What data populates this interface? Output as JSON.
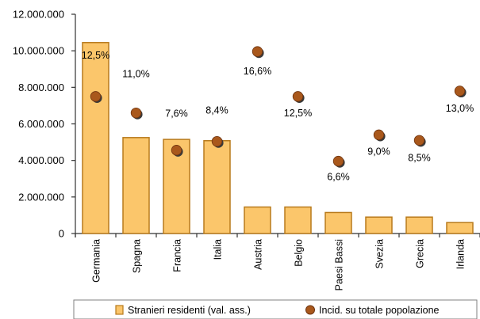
{
  "chart_data": {
    "type": "bar",
    "categories": [
      "Germania",
      "Spagna",
      "Francia",
      "Italia",
      "Austria",
      "Belgio",
      "Paesi Bassi",
      "Svezia",
      "Grecia",
      "Irlanda"
    ],
    "series": [
      {
        "name": "Stranieri residenti (val. ass.)",
        "kind": "bar",
        "axis": "left",
        "values": [
          10450000,
          5250000,
          5150000,
          5080000,
          1450000,
          1450000,
          1150000,
          900000,
          900000,
          600000
        ]
      },
      {
        "name": "Incid. su totale popolazione",
        "kind": "marker",
        "axis": "right",
        "values": [
          12.5,
          11.0,
          7.6,
          8.4,
          16.6,
          12.5,
          6.6,
          9.0,
          8.5,
          13.0
        ],
        "labels": [
          "12,5%",
          "11,0%",
          "7,6%",
          "8,4%",
          "16,6%",
          "12,5%",
          "6,6%",
          "9,0%",
          "8,5%",
          "13,0%"
        ]
      }
    ],
    "yticks": [
      "0",
      "2.000.000",
      "4.000.000",
      "6.000.000",
      "8.000.000",
      "10.000.000",
      "12.000.000"
    ],
    "ylim": [
      0,
      12000000
    ],
    "y2lim": [
      0,
      20
    ],
    "grid": false,
    "legend": "bottom",
    "colors": {
      "bar_fill": "#fbc66b",
      "bar_stroke": "#b87a1c",
      "marker_fill": "#a9581c",
      "marker_shadow": "#3a3a3a",
      "axis": "#333333"
    }
  }
}
